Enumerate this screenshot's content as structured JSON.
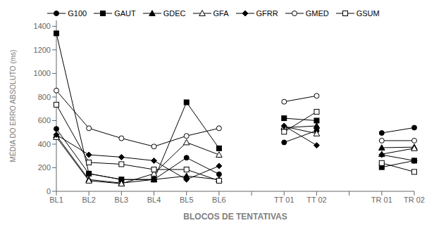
{
  "chart_data": {
    "type": "line",
    "categories": [
      "BL1",
      "BL2",
      "BL3",
      "BL4",
      "BL5",
      "BL6",
      null,
      "TT 01",
      "TT 02",
      null,
      "TR 01",
      "TR 02"
    ],
    "series": [
      {
        "name": "G100",
        "color": "#000000",
        "marker": "circle",
        "values": [
          530,
          150,
          100,
          100,
          285,
          145,
          null,
          415,
          515,
          null,
          495,
          540
        ]
      },
      {
        "name": "GAUT",
        "color": "#000000",
        "marker": "square",
        "values": [
          1340,
          150,
          100,
          100,
          755,
          365,
          null,
          620,
          600,
          null,
          205,
          260
        ]
      },
      {
        "name": "GDEC",
        "color": "#000000",
        "marker": "triangle",
        "values": [
          475,
          100,
          70,
          100,
          130,
          100,
          null,
          540,
          555,
          null,
          370,
          375
        ]
      },
      {
        "name": "GFA",
        "color": "#000000",
        "marker": "triangle_open",
        "values": [
          460,
          90,
          65,
          150,
          415,
          310,
          null,
          550,
          490,
          null,
          315,
          365
        ]
      },
      {
        "name": "GFRR",
        "color": "#000000",
        "marker": "diamond",
        "values": [
          480,
          310,
          290,
          260,
          100,
          215,
          null,
          555,
          390,
          null,
          310,
          260
        ]
      },
      {
        "name": "GMED",
        "color": "#000000",
        "marker": "circle_open",
        "values": [
          855,
          535,
          450,
          380,
          470,
          535,
          null,
          760,
          810,
          null,
          430,
          430
        ]
      },
      {
        "name": "GSUM",
        "color": "#000000",
        "marker": "square_open",
        "values": [
          735,
          245,
          230,
          185,
          185,
          90,
          null,
          505,
          675,
          null,
          240,
          165
        ]
      }
    ],
    "xlabel": "BLOCOS DE TENTATIVAS",
    "ylabel": "MÉDIA DO ERRO ABSOLUTO (ms)",
    "ylim": [
      0,
      1450
    ],
    "yticks": [
      0,
      200,
      400,
      600,
      800,
      1000,
      1200,
      1400
    ],
    "grid": false,
    "legend": "top"
  }
}
